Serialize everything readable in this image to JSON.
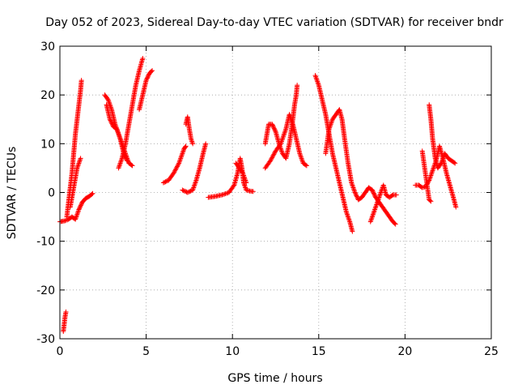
{
  "chart_data": {
    "type": "scatter",
    "title": "Day 052 of 2023, Sidereal Day-to-day VTEC variation (SDTVAR) for receiver bndr",
    "xlabel": "GPS time / hours",
    "ylabel": "SDTVAR / TECUs",
    "xlim": [
      0,
      25
    ],
    "ylim": [
      -30,
      30
    ],
    "xticks": [
      0,
      5,
      10,
      15,
      20,
      25
    ],
    "yticks": [
      -30,
      -20,
      -10,
      0,
      10,
      20,
      30
    ],
    "grid": true,
    "marker": "+",
    "color": "#ff0000",
    "series": [
      {
        "name": "SDTVAR",
        "segments": [
          [
            [
              0.0,
              -6.0
            ],
            [
              0.3,
              -5.8
            ],
            [
              0.5,
              -5.5
            ],
            [
              0.7,
              -5.0
            ],
            [
              0.9,
              -5.5
            ],
            [
              1.1,
              -3.5
            ],
            [
              1.3,
              -2.0
            ],
            [
              1.5,
              -1.2
            ],
            [
              1.7,
              -0.8
            ],
            [
              1.9,
              -0.2
            ]
          ],
          [
            [
              0.2,
              -28.5
            ],
            [
              0.25,
              -27.0
            ],
            [
              0.3,
              -25.5
            ],
            [
              0.35,
              -24.5
            ]
          ],
          [
            [
              0.4,
              -5.0
            ],
            [
              0.5,
              -2.0
            ],
            [
              0.6,
              1.0
            ],
            [
              0.7,
              4.0
            ],
            [
              0.8,
              8.0
            ],
            [
              0.9,
              12.0
            ],
            [
              1.0,
              15.0
            ],
            [
              1.1,
              18.0
            ],
            [
              1.2,
              21.0
            ],
            [
              1.25,
              23.0
            ]
          ],
          [
            [
              0.6,
              -3.0
            ],
            [
              0.7,
              -1.0
            ],
            [
              0.8,
              1.0
            ],
            [
              0.9,
              3.0
            ],
            [
              1.0,
              5.0
            ],
            [
              1.2,
              7.0
            ]
          ],
          [
            [
              2.6,
              20.0
            ],
            [
              2.8,
              19.0
            ],
            [
              3.0,
              17.0
            ],
            [
              3.2,
              14.0
            ],
            [
              3.4,
              12.0
            ],
            [
              3.6,
              10.0
            ],
            [
              3.8,
              8.0
            ],
            [
              4.0,
              6.0
            ],
            [
              4.2,
              5.5
            ]
          ],
          [
            [
              2.7,
              18.0
            ],
            [
              2.9,
              15.0
            ],
            [
              3.1,
              13.5
            ],
            [
              3.3,
              13.0
            ],
            [
              3.5,
              11.0
            ],
            [
              3.7,
              8.0
            ],
            [
              3.9,
              6.5
            ]
          ],
          [
            [
              3.4,
              5.0
            ],
            [
              3.6,
              7.0
            ],
            [
              3.8,
              10.0
            ],
            [
              4.0,
              14.0
            ],
            [
              4.2,
              18.0
            ],
            [
              4.4,
              22.0
            ],
            [
              4.6,
              25.0
            ],
            [
              4.8,
              27.5
            ]
          ],
          [
            [
              4.6,
              17.0
            ],
            [
              4.8,
              20.0
            ],
            [
              5.0,
              23.0
            ],
            [
              5.2,
              24.5
            ],
            [
              5.35,
              25.0
            ]
          ],
          [
            [
              6.0,
              2.0
            ],
            [
              6.3,
              2.5
            ],
            [
              6.6,
              4.0
            ],
            [
              6.9,
              6.0
            ],
            [
              7.2,
              9.0
            ],
            [
              7.3,
              9.5
            ]
          ],
          [
            [
              7.3,
              14.0
            ],
            [
              7.4,
              15.5
            ],
            [
              7.5,
              13.0
            ],
            [
              7.6,
              11.0
            ],
            [
              7.7,
              10.0
            ]
          ],
          [
            [
              7.1,
              0.5
            ],
            [
              7.4,
              0.0
            ],
            [
              7.7,
              0.5
            ],
            [
              7.9,
              2.5
            ],
            [
              8.1,
              5.0
            ],
            [
              8.3,
              8.0
            ],
            [
              8.45,
              10.0
            ]
          ],
          [
            [
              8.6,
              -1.0
            ],
            [
              9.0,
              -0.8
            ],
            [
              9.4,
              -0.5
            ],
            [
              9.8,
              0.0
            ],
            [
              10.1,
              1.5
            ],
            [
              10.3,
              4.0
            ],
            [
              10.45,
              7.0
            ],
            [
              10.55,
              5.0
            ],
            [
              10.65,
              2.0
            ],
            [
              10.8,
              0.5
            ],
            [
              11.0,
              0.3
            ],
            [
              11.2,
              0.2
            ]
          ],
          [
            [
              10.2,
              6.0
            ],
            [
              10.4,
              5.0
            ],
            [
              10.6,
              4.0
            ],
            [
              10.8,
              2.0
            ]
          ],
          [
            [
              11.9,
              10.0
            ],
            [
              12.1,
              14.0
            ],
            [
              12.3,
              14.0
            ],
            [
              12.5,
              12.5
            ],
            [
              12.7,
              10.0
            ],
            [
              12.9,
              8.0
            ],
            [
              13.1,
              7.0
            ],
            [
              13.3,
              10.0
            ],
            [
              13.5,
              15.0
            ],
            [
              13.6,
              18.0
            ],
            [
              13.7,
              20.0
            ],
            [
              13.75,
              22.0
            ]
          ],
          [
            [
              11.9,
              5.0
            ],
            [
              12.2,
              6.5
            ],
            [
              12.5,
              8.5
            ],
            [
              12.8,
              10.0
            ],
            [
              13.1,
              13.0
            ],
            [
              13.3,
              16.0
            ],
            [
              13.5,
              14.0
            ],
            [
              13.7,
              11.0
            ],
            [
              13.9,
              8.0
            ],
            [
              14.1,
              6.0
            ],
            [
              14.3,
              5.5
            ]
          ],
          [
            [
              14.8,
              24.0
            ],
            [
              15.0,
              22.0
            ],
            [
              15.2,
              19.0
            ],
            [
              15.4,
              16.0
            ],
            [
              15.6,
              12.0
            ],
            [
              15.8,
              8.0
            ],
            [
              16.0,
              5.0
            ],
            [
              16.2,
              2.0
            ],
            [
              16.4,
              -1.0
            ],
            [
              16.6,
              -4.0
            ],
            [
              16.8,
              -6.0
            ],
            [
              16.95,
              -8.0
            ]
          ],
          [
            [
              15.4,
              8.0
            ],
            [
              15.6,
              13.0
            ],
            [
              15.8,
              15.0
            ],
            [
              16.0,
              16.0
            ],
            [
              16.2,
              17.0
            ],
            [
              16.35,
              15.0
            ],
            [
              16.5,
              11.0
            ],
            [
              16.7,
              6.0
            ],
            [
              16.9,
              2.0
            ],
            [
              17.1,
              0.0
            ],
            [
              17.3,
              -1.5
            ],
            [
              17.5,
              -1.0
            ],
            [
              17.7,
              0.0
            ],
            [
              17.9,
              1.0
            ],
            [
              18.1,
              0.5
            ],
            [
              18.3,
              -1.0
            ],
            [
              18.5,
              -2.0
            ],
            [
              18.7,
              -3.0
            ],
            [
              18.9,
              -4.0
            ],
            [
              19.1,
              -5.0
            ],
            [
              19.3,
              -6.0
            ],
            [
              19.45,
              -6.5
            ]
          ],
          [
            [
              18.0,
              -6.0
            ],
            [
              18.2,
              -4.0
            ],
            [
              18.4,
              -2.0
            ],
            [
              18.6,
              0.0
            ],
            [
              18.75,
              1.5
            ],
            [
              18.9,
              -0.5
            ],
            [
              19.1,
              -1.0
            ],
            [
              19.3,
              -0.5
            ],
            [
              19.5,
              -0.5
            ]
          ],
          [
            [
              20.6,
              1.5
            ],
            [
              20.8,
              1.5
            ],
            [
              21.0,
              1.0
            ],
            [
              21.2,
              1.2
            ],
            [
              21.4,
              2.5
            ],
            [
              21.6,
              4.5
            ],
            [
              21.8,
              6.5
            ],
            [
              22.0,
              9.5
            ],
            [
              22.2,
              7.0
            ],
            [
              22.4,
              4.0
            ],
            [
              22.6,
              1.5
            ],
            [
              22.8,
              -1.0
            ],
            [
              22.95,
              -3.0
            ]
          ],
          [
            [
              21.4,
              18.0
            ],
            [
              21.5,
              15.0
            ],
            [
              21.6,
              11.0
            ],
            [
              21.75,
              7.0
            ],
            [
              21.9,
              5.0
            ],
            [
              22.1,
              6.0
            ],
            [
              22.3,
              8.0
            ],
            [
              22.5,
              7.0
            ],
            [
              22.7,
              6.5
            ],
            [
              22.9,
              6.0
            ]
          ],
          [
            [
              21.0,
              8.5
            ],
            [
              21.4,
              -1.5
            ],
            [
              21.5,
              -1.8
            ]
          ]
        ]
      }
    ]
  }
}
